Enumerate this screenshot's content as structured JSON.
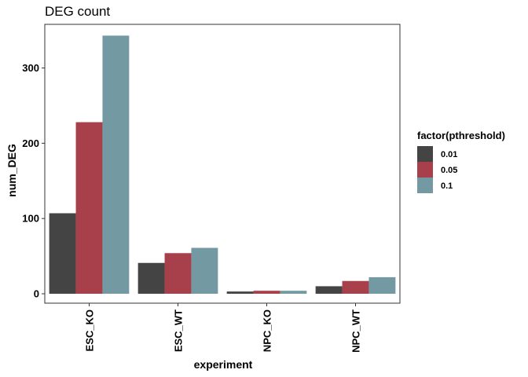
{
  "chart_data": {
    "type": "bar",
    "title": "DEG count",
    "xlabel": "experiment",
    "ylabel": "num_DEG",
    "categories": [
      "ESC_KO",
      "ESC_WT",
      "NPC_KO",
      "NPC_WT"
    ],
    "series": [
      {
        "name": "0.01",
        "color": "#444444",
        "values": [
          107,
          41,
          3,
          10
        ]
      },
      {
        "name": "0.05",
        "color": "#a8404b",
        "values": [
          228,
          54,
          4,
          17
        ]
      },
      {
        "name": "0.1",
        "color": "#7399a2",
        "values": [
          343,
          61,
          4,
          22
        ]
      }
    ],
    "ylim": [
      -12.5,
      358
    ],
    "yticks": [
      0,
      100,
      200,
      300
    ],
    "legend_title": "factor(pthreshold)",
    "legend_position": "right",
    "grid": false
  }
}
